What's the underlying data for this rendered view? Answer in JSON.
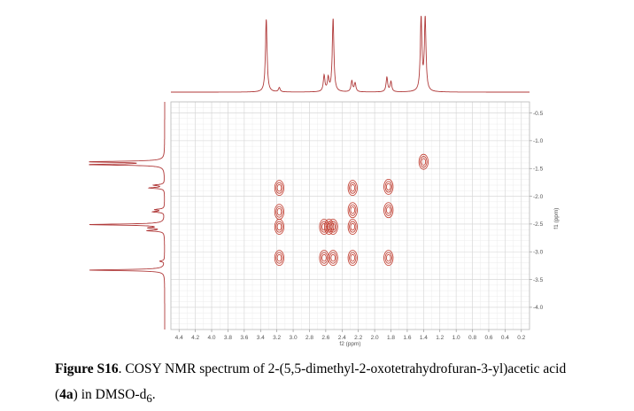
{
  "chart_data": {
    "type": "heatmap",
    "subtype": "2D COSY NMR contour plot",
    "xlabel": "f2 (ppm)",
    "ylabel": "f1 (ppm)",
    "x_ticks": [
      "4.4",
      "4.2",
      "4.0",
      "3.8",
      "3.6",
      "3.4",
      "3.2",
      "3.0",
      "2.8",
      "2.6",
      "2.4",
      "2.2",
      "2.0",
      "1.8",
      "1.6",
      "1.4",
      "1.2",
      "1.0",
      "0.8",
      "0.6",
      "0.4",
      "0.2"
    ],
    "y_ticks": [
      "0.5",
      "1.0",
      "1.5",
      "2.0",
      "2.5",
      "3.0",
      "3.5",
      "4.0"
    ],
    "xlim": [
      4.5,
      0.1
    ],
    "ylim": [
      0.3,
      4.4
    ],
    "grid": true,
    "color": "#c0392b",
    "projection_peaks_ppm": [
      3.33,
      3.17,
      2.51,
      2.62,
      2.57,
      2.28,
      2.24,
      1.85,
      1.8,
      1.43,
      1.38
    ],
    "cross_peaks": [
      {
        "x": 3.17,
        "y": 1.85
      },
      {
        "x": 3.17,
        "y": 2.28
      },
      {
        "x": 3.17,
        "y": 2.55
      },
      {
        "x": 3.17,
        "y": 3.11
      },
      {
        "x": 2.62,
        "y": 2.55
      },
      {
        "x": 2.56,
        "y": 2.55
      },
      {
        "x": 2.51,
        "y": 2.55
      },
      {
        "x": 2.62,
        "y": 3.11
      },
      {
        "x": 2.51,
        "y": 3.11
      },
      {
        "x": 2.27,
        "y": 1.85
      },
      {
        "x": 2.27,
        "y": 2.25
      },
      {
        "x": 2.27,
        "y": 2.55
      },
      {
        "x": 2.27,
        "y": 3.11
      },
      {
        "x": 1.83,
        "y": 1.83
      },
      {
        "x": 1.83,
        "y": 2.25
      },
      {
        "x": 1.83,
        "y": 3.11
      },
      {
        "x": 1.4,
        "y": 1.38
      }
    ]
  },
  "caption": {
    "label": "Figure S16",
    "text_after_label": ". COSY NMR spectrum of 2-(5,5-dimethyl-2-oxotetrahydrofuran-3-yl)acetic acid",
    "compound_open": "(",
    "compound_id": "4a",
    "compound_close": ") in DMSO-d",
    "subscript": "6",
    "tail": "."
  }
}
